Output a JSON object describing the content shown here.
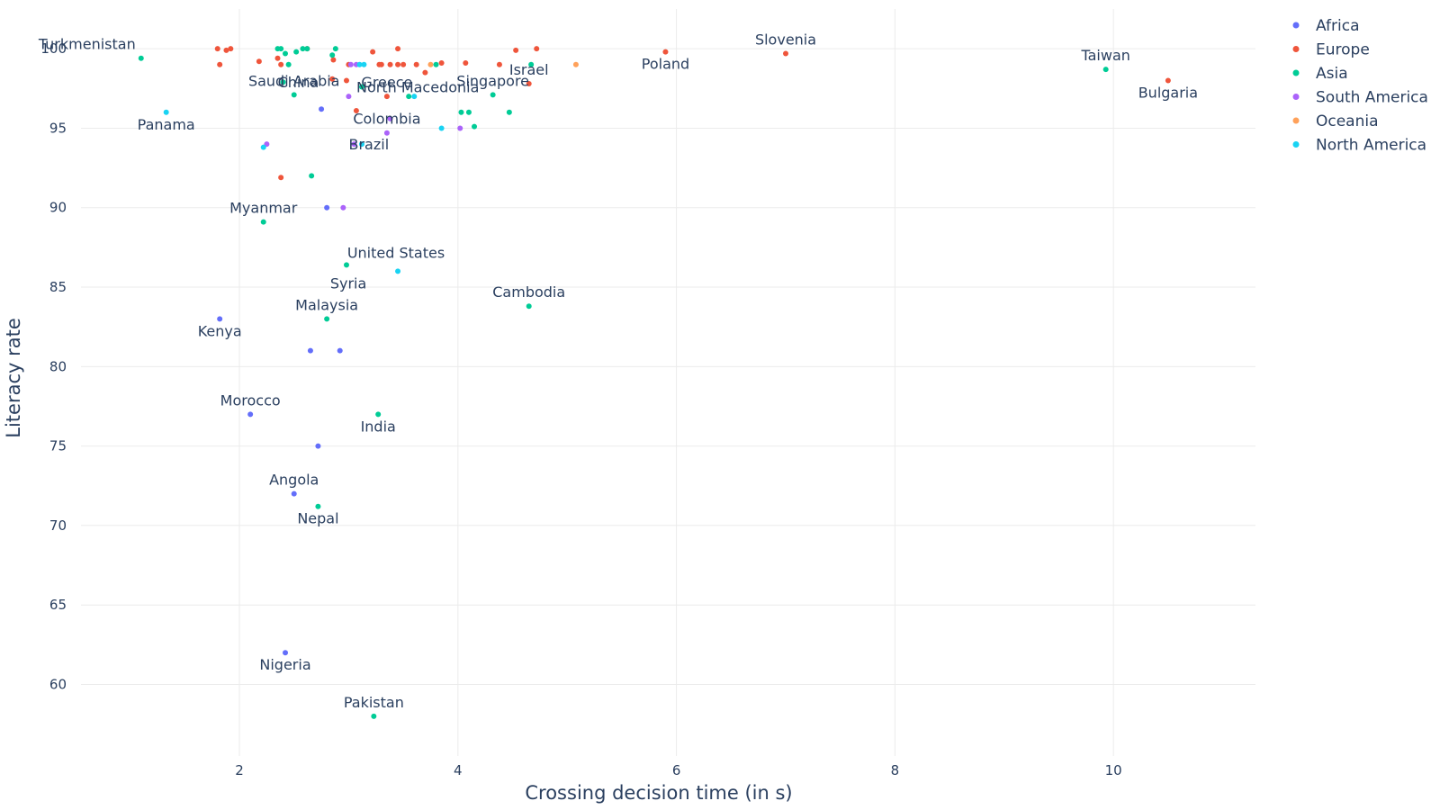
{
  "chart_data": {
    "type": "scatter",
    "xlabel": "Crossing decision time (in s)",
    "ylabel": "Literacy rate",
    "xlim": [
      0.55,
      11.3
    ],
    "ylim": [
      55.5,
      102.5
    ],
    "x_ticks": [
      2,
      4,
      6,
      8,
      10
    ],
    "y_ticks": [
      60,
      65,
      70,
      75,
      80,
      85,
      90,
      95,
      100
    ],
    "grid": true,
    "legend_position": "top-right",
    "colors": {
      "Africa": "#636efa",
      "Europe": "#ef553b",
      "Asia": "#00cc96",
      "South America": "#ab63fa",
      "Oceania": "#ffa15a",
      "North America": "#19d3f3"
    },
    "series": [
      {
        "name": "Africa",
        "points": [
          {
            "x": 1.82,
            "y": 83,
            "label": "Kenya",
            "label_pos": "below"
          },
          {
            "x": 2.1,
            "y": 77,
            "label": "Morocco",
            "label_pos": "above"
          },
          {
            "x": 2.5,
            "y": 72,
            "label": "Angola",
            "label_pos": "above"
          },
          {
            "x": 2.42,
            "y": 62,
            "label": "Nigeria",
            "label_pos": "below"
          },
          {
            "x": 2.75,
            "y": 96.2
          },
          {
            "x": 2.8,
            "y": 90
          },
          {
            "x": 2.65,
            "y": 81
          },
          {
            "x": 2.92,
            "y": 81
          },
          {
            "x": 2.72,
            "y": 75
          }
        ]
      },
      {
        "name": "Europe",
        "points": [
          {
            "x": 7.0,
            "y": 99.7,
            "label": "Slovenia",
            "label_pos": "above"
          },
          {
            "x": 5.9,
            "y": 99.8,
            "label": "Poland",
            "label_pos": "below"
          },
          {
            "x": 10.5,
            "y": 98,
            "label": "Bulgaria",
            "label_pos": "below"
          },
          {
            "x": 4.65,
            "y": 97.8,
            "label": "Israel",
            "label_pos": "above"
          },
          {
            "x": 3.35,
            "y": 97,
            "label": "Greece",
            "label_pos": "above"
          },
          {
            "x": 1.8,
            "y": 100
          },
          {
            "x": 1.82,
            "y": 99
          },
          {
            "x": 1.88,
            "y": 99.9
          },
          {
            "x": 1.92,
            "y": 100
          },
          {
            "x": 2.18,
            "y": 99.2
          },
          {
            "x": 2.35,
            "y": 99.4
          },
          {
            "x": 2.38,
            "y": 99
          },
          {
            "x": 2.62,
            "y": 100
          },
          {
            "x": 2.85,
            "y": 98.1
          },
          {
            "x": 2.86,
            "y": 99.3
          },
          {
            "x": 2.98,
            "y": 98
          },
          {
            "x": 3.0,
            "y": 99
          },
          {
            "x": 3.22,
            "y": 99.8
          },
          {
            "x": 3.28,
            "y": 99
          },
          {
            "x": 3.3,
            "y": 99
          },
          {
            "x": 3.38,
            "y": 99
          },
          {
            "x": 3.45,
            "y": 100
          },
          {
            "x": 3.45,
            "y": 99
          },
          {
            "x": 3.5,
            "y": 99
          },
          {
            "x": 3.62,
            "y": 99
          },
          {
            "x": 3.7,
            "y": 98.5
          },
          {
            "x": 3.85,
            "y": 99.1
          },
          {
            "x": 4.07,
            "y": 99.1
          },
          {
            "x": 4.38,
            "y": 99
          },
          {
            "x": 4.53,
            "y": 99.9
          },
          {
            "x": 4.72,
            "y": 100
          },
          {
            "x": 3.07,
            "y": 96.1
          },
          {
            "x": 2.38,
            "y": 91.9
          }
        ]
      },
      {
        "name": "Asia",
        "points": [
          {
            "x": 1.1,
            "y": 99.4,
            "label": "Turkmenistan",
            "label_pos": "above-left"
          },
          {
            "x": 2.4,
            "y": 97.9,
            "label": "China",
            "label_pos": "right"
          },
          {
            "x": 2.5,
            "y": 97.1,
            "label": "Saudi Arabia",
            "label_pos": "above"
          },
          {
            "x": 3.12,
            "y": 97.6,
            "label": "North Macedonia",
            "label_pos": "right"
          },
          {
            "x": 4.32,
            "y": 97.1,
            "label": "Singapore",
            "label_pos": "above"
          },
          {
            "x": 9.93,
            "y": 98.7,
            "label": "Taiwan",
            "label_pos": "above"
          },
          {
            "x": 2.22,
            "y": 89.1,
            "label": "Myanmar",
            "label_pos": "above"
          },
          {
            "x": 2.98,
            "y": 86.4,
            "label": "United States",
            "label_pos": "above-right"
          },
          {
            "x": 2.8,
            "y": 83,
            "label": "Malaysia",
            "label_pos": "above"
          },
          {
            "x": 4.65,
            "y": 83.8,
            "label": "Cambodia",
            "label_pos": "above"
          },
          {
            "x": 3.27,
            "y": 77,
            "label": "India",
            "label_pos": "below"
          },
          {
            "x": 2.72,
            "y": 71.2,
            "label": "Nepal",
            "label_pos": "below"
          },
          {
            "x": 3.23,
            "y": 58,
            "label": "Pakistan",
            "label_pos": "above"
          },
          {
            "x": 2.35,
            "y": 100
          },
          {
            "x": 2.38,
            "y": 100
          },
          {
            "x": 2.42,
            "y": 99.7
          },
          {
            "x": 2.45,
            "y": 99
          },
          {
            "x": 2.52,
            "y": 99.8
          },
          {
            "x": 2.58,
            "y": 100
          },
          {
            "x": 2.62,
            "y": 100
          },
          {
            "x": 2.85,
            "y": 99.6
          },
          {
            "x": 2.88,
            "y": 100
          },
          {
            "x": 3.8,
            "y": 99
          },
          {
            "x": 4.03,
            "y": 96
          },
          {
            "x": 4.1,
            "y": 96
          },
          {
            "x": 4.15,
            "y": 95.1
          },
          {
            "x": 4.47,
            "y": 96
          },
          {
            "x": 4.67,
            "y": 99
          },
          {
            "x": 3.55,
            "y": 97
          },
          {
            "x": 2.66,
            "y": 92
          }
        ]
      },
      {
        "name": "South America",
        "points": [
          {
            "x": 3.35,
            "y": 94.7,
            "label": "Colombia",
            "label_pos": "above"
          },
          {
            "x": 3.05,
            "y": 94,
            "label": "Brazil",
            "label_pos": "right"
          },
          {
            "x": 3.0,
            "y": 97
          },
          {
            "x": 3.38,
            "y": 95.6
          },
          {
            "x": 4.02,
            "y": 95
          },
          {
            "x": 2.25,
            "y": 94
          },
          {
            "x": 2.95,
            "y": 90
          },
          {
            "x": 3.02,
            "y": 99
          },
          {
            "x": 3.07,
            "y": 99
          }
        ]
      },
      {
        "name": "Oceania",
        "points": [
          {
            "x": 3.75,
            "y": 99
          },
          {
            "x": 5.08,
            "y": 99
          }
        ]
      },
      {
        "name": "North America",
        "points": [
          {
            "x": 1.33,
            "y": 96,
            "label": "Panama",
            "label_pos": "below"
          },
          {
            "x": 3.45,
            "y": 86,
            "label": "Syria",
            "label_pos": "below-left"
          },
          {
            "x": 2.22,
            "y": 93.8
          },
          {
            "x": 3.12,
            "y": 94
          },
          {
            "x": 3.85,
            "y": 95
          },
          {
            "x": 3.1,
            "y": 99
          },
          {
            "x": 3.14,
            "y": 99
          },
          {
            "x": 3.6,
            "y": 97
          }
        ]
      }
    ]
  }
}
